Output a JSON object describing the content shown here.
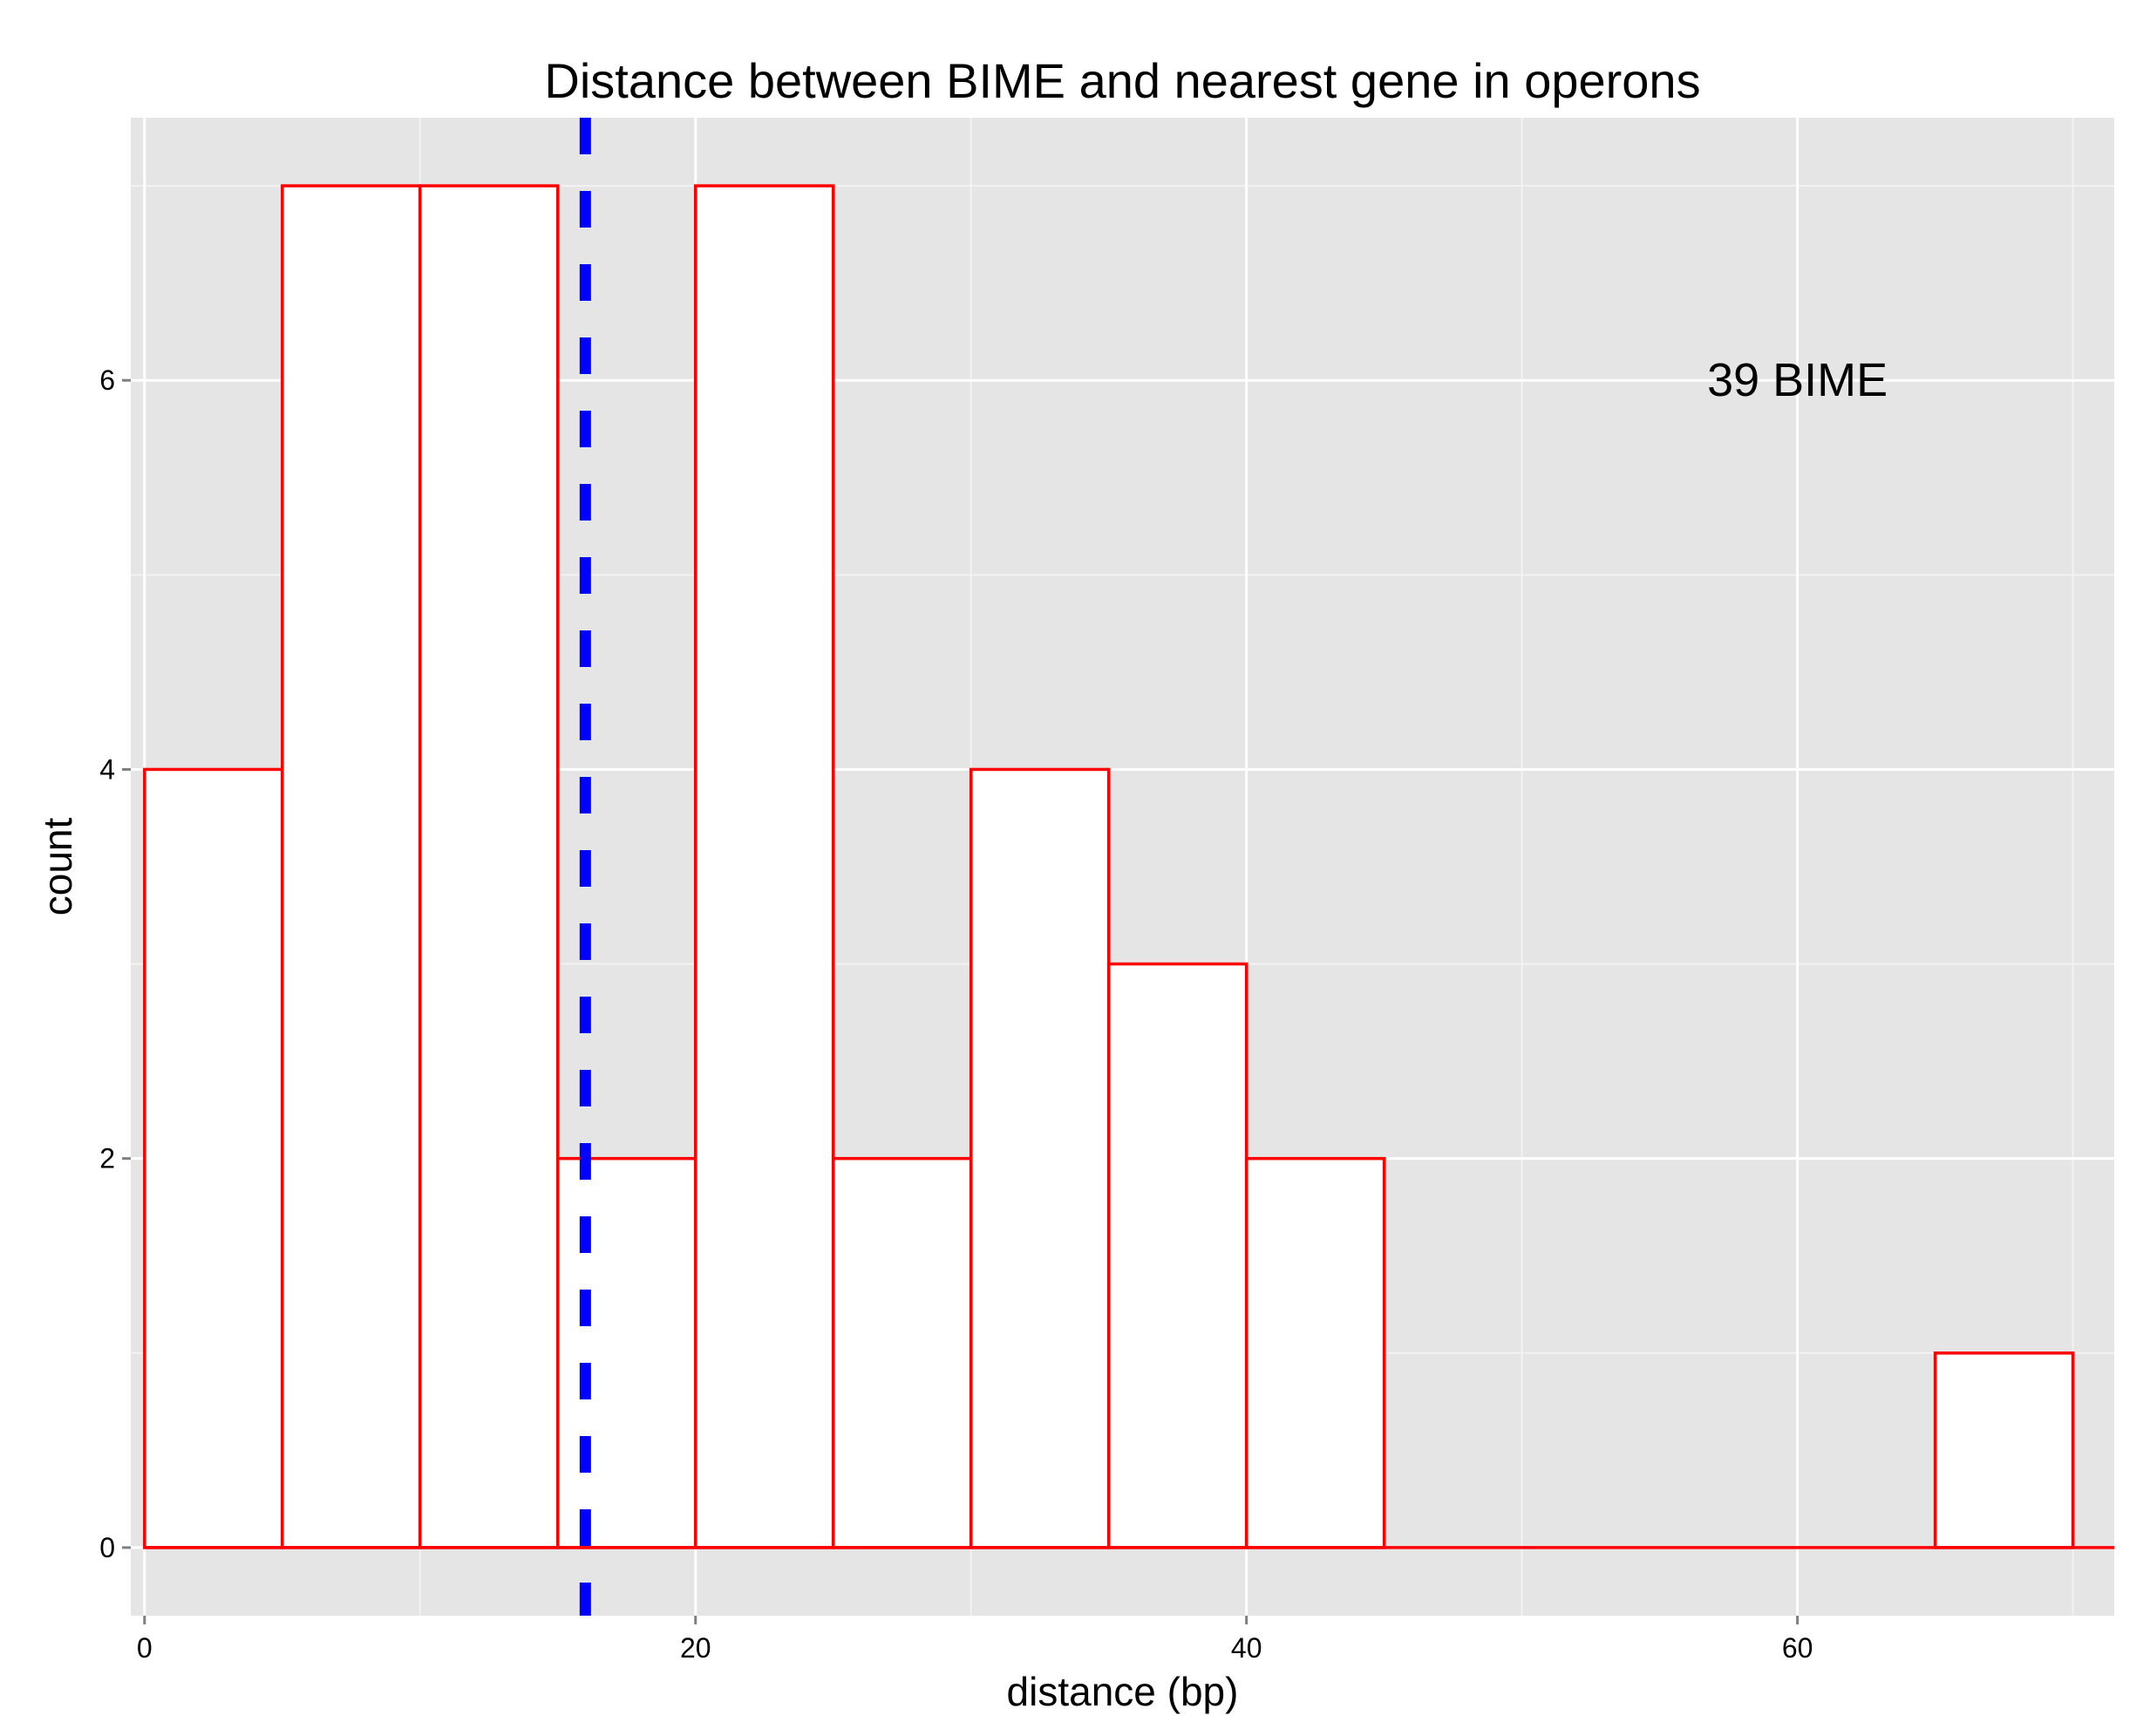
{
  "chart_data": {
    "type": "bar",
    "title": "Distance between BIME and nearest gene in operons",
    "xlabel": "distance (bp)",
    "ylabel": "count",
    "annotation": "39 BIME",
    "bin_width": 5,
    "bins": [
      {
        "x0": 0,
        "x1": 5,
        "count": 4
      },
      {
        "x0": 5,
        "x1": 10,
        "count": 7
      },
      {
        "x0": 10,
        "x1": 15,
        "count": 7
      },
      {
        "x0": 15,
        "x1": 20,
        "count": 2
      },
      {
        "x0": 20,
        "x1": 25,
        "count": 7
      },
      {
        "x0": 25,
        "x1": 30,
        "count": 2
      },
      {
        "x0": 30,
        "x1": 35,
        "count": 4
      },
      {
        "x0": 35,
        "x1": 40,
        "count": 3
      },
      {
        "x0": 40,
        "x1": 45,
        "count": 2
      },
      {
        "x0": 45,
        "x1": 50,
        "count": 0
      },
      {
        "x0": 50,
        "x1": 55,
        "count": 0
      },
      {
        "x0": 55,
        "x1": 60,
        "count": 0
      },
      {
        "x0": 60,
        "x1": 65,
        "count": 0
      },
      {
        "x0": 65,
        "x1": 70,
        "count": 1
      }
    ],
    "vline": {
      "x": 16,
      "style": "dashed",
      "color": "#0000ff"
    },
    "xlim": [
      -0.5,
      71.5
    ],
    "ylim": [
      -0.35,
      7.35
    ],
    "x_ticks": [
      "0",
      "20",
      "40",
      "60"
    ],
    "y_ticks": [
      "0",
      "2",
      "4",
      "6"
    ],
    "bar_fill": "#ffffff",
    "bar_outline": "#ff0000",
    "panel_background": "#e5e5e5",
    "grid": true
  }
}
